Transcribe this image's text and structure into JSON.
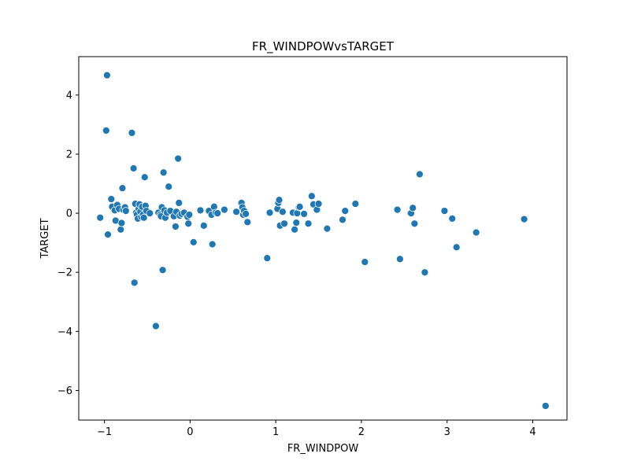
{
  "chart_data": {
    "type": "scatter",
    "title": "FR_WINDPOWvsTARGET",
    "xlabel": "FR_WINDPOW",
    "ylabel": "TARGET",
    "xlim": [
      -1.3,
      4.4
    ],
    "ylim": [
      -7.0,
      5.3
    ],
    "x_ticks": [
      -1,
      0,
      1,
      2,
      3,
      4
    ],
    "x_tick_labels": [
      "−1",
      "0",
      "1",
      "2",
      "3",
      "4"
    ],
    "y_ticks": [
      -6,
      -4,
      -2,
      0,
      2,
      4
    ],
    "y_tick_labels": [
      "−6",
      "−4",
      "−2",
      "0",
      "2",
      "4"
    ],
    "grid": false,
    "marker_color": "#1f77b4",
    "marker_edge_color": "#ffffff",
    "series": [
      {
        "x": [
          -1.05,
          -0.98,
          -0.97,
          -0.96,
          -0.92,
          -0.91,
          -0.88,
          -0.87,
          -0.85,
          -0.83,
          -0.81,
          -0.8,
          -0.79,
          -0.78,
          -0.76,
          -0.75,
          -0.68,
          -0.66,
          -0.65,
          -0.64,
          -0.63,
          -0.62,
          -0.61,
          -0.6,
          -0.59,
          -0.58,
          -0.57,
          -0.56,
          -0.55,
          -0.54,
          -0.53,
          -0.52,
          -0.51,
          -0.47,
          -0.4,
          -0.37,
          -0.35,
          -0.34,
          -0.33,
          -0.32,
          -0.31,
          -0.3,
          -0.29,
          -0.27,
          -0.25,
          -0.23,
          -0.19,
          -0.17,
          -0.16,
          -0.14,
          -0.13,
          -0.12,
          -0.1,
          -0.07,
          -0.03,
          -0.02,
          -0.01,
          0.04,
          0.12,
          0.16,
          0.22,
          0.25,
          0.26,
          0.28,
          0.3,
          0.32,
          0.4,
          0.54,
          0.6,
          0.61,
          0.62,
          0.63,
          0.65,
          0.67,
          0.9,
          0.93,
          1.02,
          1.03,
          1.04,
          1.05,
          1.08,
          1.1,
          1.2,
          1.22,
          1.24,
          1.25,
          1.27,
          1.28,
          1.33,
          1.38,
          1.42,
          1.44,
          1.48,
          1.5,
          1.6,
          1.78,
          1.81,
          1.93,
          2.04,
          2.42,
          2.45,
          2.57,
          2.58,
          2.6,
          2.62,
          2.68,
          2.74,
          2.97,
          3.06,
          3.11,
          3.34,
          3.9,
          4.15
        ],
        "y": [
          -0.15,
          2.8,
          4.67,
          -0.72,
          0.48,
          0.22,
          0.1,
          -0.25,
          0.28,
          0.15,
          -0.55,
          -0.33,
          0.85,
          0.12,
          0.2,
          0.08,
          2.72,
          1.52,
          -2.35,
          0.32,
          0.02,
          -0.05,
          -0.18,
          0.15,
          0.3,
          0.05,
          -0.12,
          0.22,
          -0.05,
          -0.15,
          1.22,
          0.25,
          0.08,
          0.0,
          -3.82,
          0.02,
          -0.05,
          -0.1,
          0.2,
          -1.92,
          1.38,
          0.1,
          -0.15,
          0.02,
          0.9,
          0.08,
          -0.1,
          -0.45,
          0.05,
          1.85,
          0.35,
          -0.08,
          -0.02,
          0.02,
          -0.12,
          -0.35,
          -0.05,
          -0.98,
          0.1,
          -0.42,
          0.08,
          -0.05,
          -1.05,
          0.22,
          0.02,
          0.0,
          0.12,
          0.05,
          0.35,
          0.2,
          -0.05,
          0.08,
          -0.02,
          -0.3,
          -1.52,
          0.02,
          0.15,
          0.35,
          0.45,
          -0.42,
          0.05,
          -0.35,
          0.02,
          -0.55,
          -0.32,
          0.0,
          0.2,
          0.22,
          -0.02,
          -0.35,
          0.58,
          0.3,
          0.12,
          0.32,
          -0.52,
          -0.22,
          0.08,
          0.32,
          -1.65,
          0.12,
          -1.55,
          0.0,
          0.0,
          0.18,
          -0.35,
          1.32,
          -2.0,
          0.08,
          -0.18,
          -1.15,
          -0.65,
          -0.2,
          -6.52
        ]
      }
    ]
  }
}
